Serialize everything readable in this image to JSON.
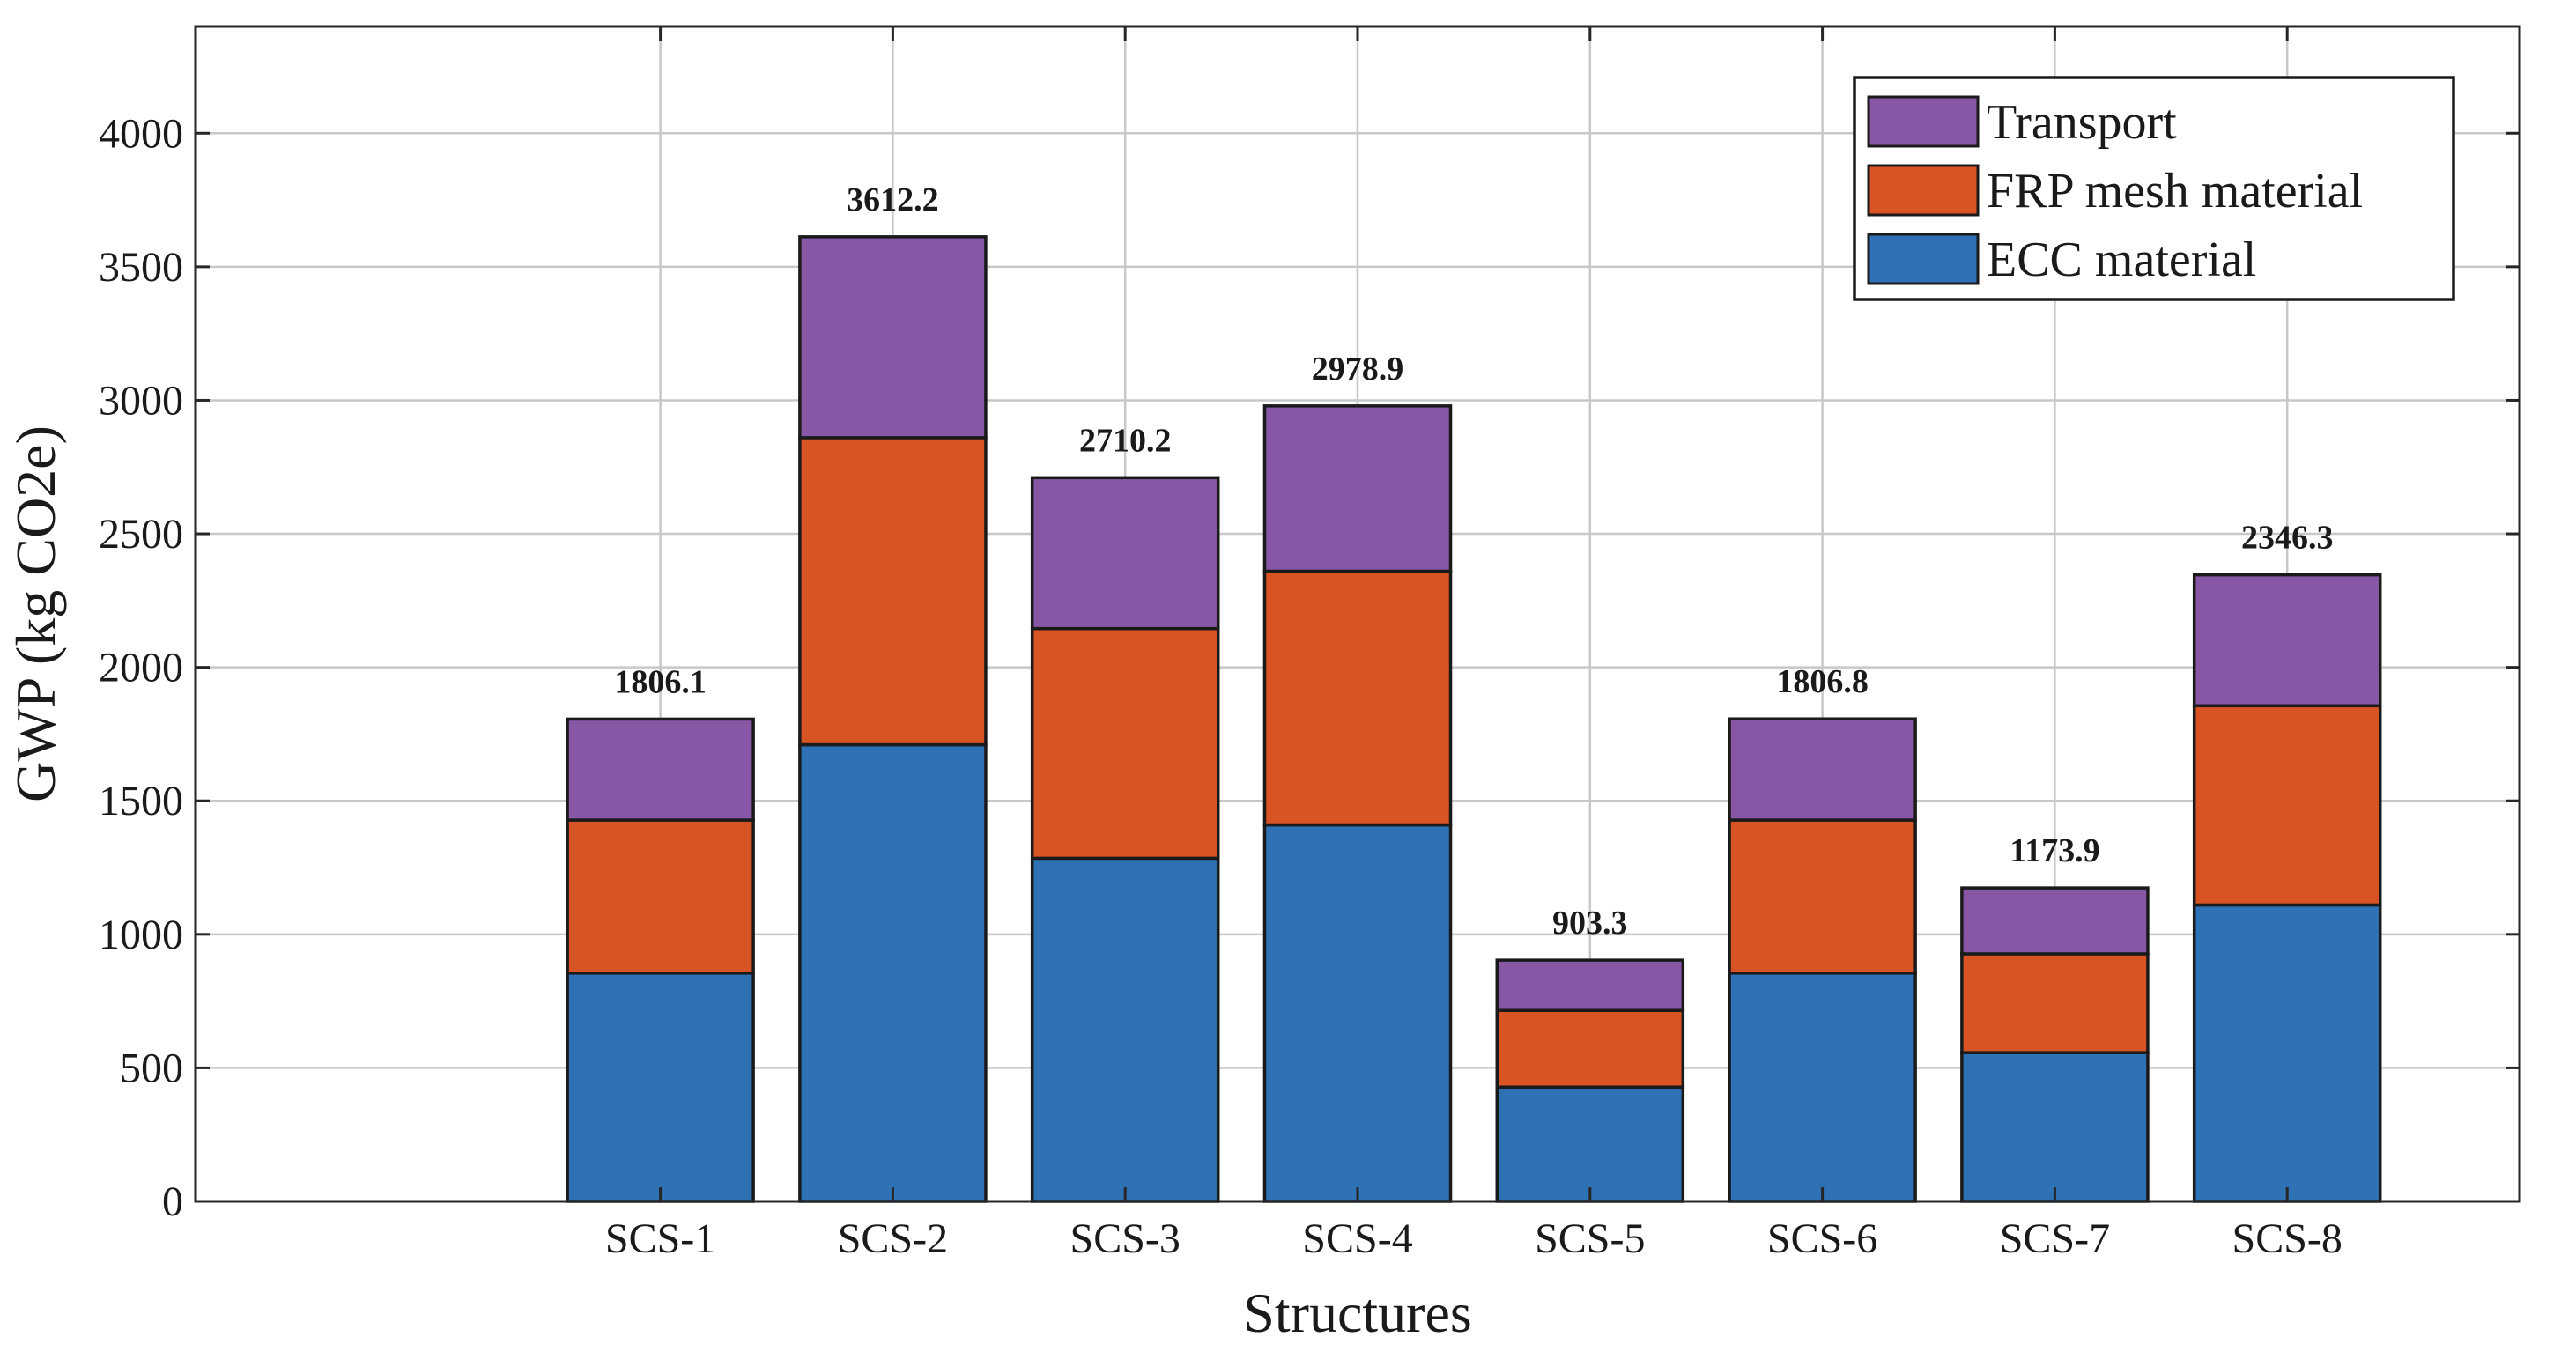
{
  "chart_data": {
    "type": "bar",
    "stacked": true,
    "title": "",
    "xlabel": "Structures",
    "ylabel": "GWP (kg CO2e)",
    "ylim": [
      0,
      4400
    ],
    "yticks": [
      0,
      500,
      1000,
      1500,
      2000,
      2500,
      3000,
      3500,
      4000
    ],
    "grid": true,
    "legend_position": "top-right",
    "categories": [
      "SCS-1",
      "SCS-2",
      "SCS-3",
      "SCS-4",
      "SCS-5",
      "SCS-6",
      "SCS-7",
      "SCS-8"
    ],
    "series": [
      {
        "name": "ECC material",
        "color": "#2e72b5",
        "values": [
          855,
          1710,
          1285,
          1410,
          428,
          855,
          557,
          1110
        ]
      },
      {
        "name": "FRP mesh material",
        "color": "#d95425",
        "values": [
          573,
          1150,
          860,
          950,
          287,
          573,
          370,
          746
        ]
      },
      {
        "name": "Transport",
        "color": "#8757a5",
        "values": [
          378.1,
          752.2,
          565.2,
          618.9,
          188.3,
          378.8,
          246.9,
          490.3
        ]
      }
    ],
    "totals": [
      "1806.1",
      "3612.2",
      "2710.2",
      "2978.9",
      "903.3",
      "1806.8",
      "1173.9",
      "2346.3"
    ],
    "legend_order": [
      "Transport",
      "FRP mesh material",
      "ECC material"
    ]
  }
}
